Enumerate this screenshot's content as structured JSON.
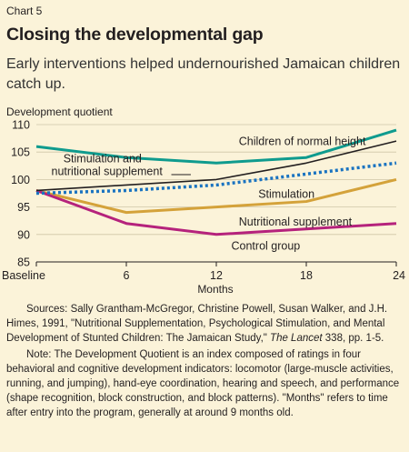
{
  "header": {
    "chart_number": "Chart 5",
    "title": "Closing the developmental gap",
    "subtitle": "Early interventions helped undernourished Jamaican children catch up."
  },
  "chart_data": {
    "type": "line",
    "x": [
      0,
      6,
      12,
      18,
      24
    ],
    "x_tick_labels": [
      "Baseline",
      "6",
      "12",
      "18",
      "24"
    ],
    "xlabel": "Months",
    "ylabel": "Development quotient",
    "ylim": [
      85,
      110
    ],
    "y_ticks": [
      85,
      90,
      95,
      100,
      105,
      110
    ],
    "grid": "horizontal",
    "series": [
      {
        "name": "Children of normal height",
        "color": "#0f9b8e",
        "style": "solid",
        "values": [
          106,
          104,
          103,
          104,
          109
        ]
      },
      {
        "name": "Stimulation and nutritional supplement",
        "color": "#231f20",
        "style": "solid",
        "values": [
          98,
          99,
          100,
          103,
          107
        ]
      },
      {
        "name": "Stimulation",
        "color": "#1a73c1",
        "style": "dotted",
        "values": [
          97.5,
          98,
          99,
          101,
          103
        ]
      },
      {
        "name": "Nutritional supplement",
        "color": "#d4a23a",
        "style": "solid",
        "values": [
          98,
          94,
          95,
          96,
          100
        ]
      },
      {
        "name": "Control group",
        "color": "#b5227c",
        "style": "solid",
        "values": [
          98,
          92,
          90,
          91,
          92
        ]
      }
    ],
    "annotations": [
      {
        "text": "Children of normal height",
        "x": 13.5,
        "y": 106.3
      },
      {
        "text": "Stimulation and",
        "x": 1.8,
        "y": 103.1
      },
      {
        "text": "nutritional supplement",
        "x": 1.0,
        "y": 100.8
      },
      {
        "text": "Stimulation",
        "x": 14.8,
        "y": 96.7
      },
      {
        "text": "Nutritional supplement",
        "x": 13.5,
        "y": 91.6
      },
      {
        "text": "Control group",
        "x": 13.0,
        "y": 87.2
      }
    ]
  },
  "notes": {
    "sources": "Sources: Sally Grantham-McGregor, Christine Powell, Susan Walker, and J.H. Himes, 1991, \"Nutritional  Supplementation, Psychological Stimulation, and Mental Development of Stunted Children: The Jamaican Study,\" ",
    "sources_journal": "The Lancet",
    "sources_end": " 338, pp. 1-5.",
    "note": "Note: The Development Quotient is an index composed of ratings in four behavioral and cognitive development indicators: locomotor (large-muscle activities, running, and jumping), hand-eye coordination, hearing and speech, and performance (shape recognition, block construction, and block patterns). \"Months\" refers to time after entry into the program, generally at around 9 months old."
  }
}
